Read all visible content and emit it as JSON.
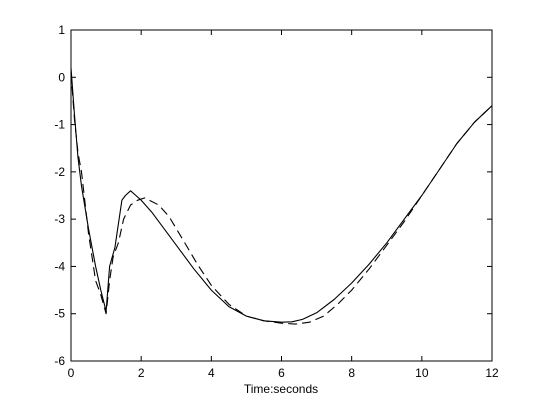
{
  "chart_data": {
    "type": "line",
    "xlabel": "Time:seconds",
    "ylabel": "",
    "title": "",
    "xlim": [
      0,
      12
    ],
    "ylim": [
      -6,
      1
    ],
    "grid": false,
    "legend": "none",
    "x_ticks": [
      0,
      2,
      4,
      6,
      8,
      10,
      12
    ],
    "y_ticks": [
      1,
      0,
      -1,
      -2,
      -3,
      -4,
      -5,
      -6
    ],
    "series": [
      {
        "style": "solid",
        "color": "#000000",
        "x": [
          0,
          0.1,
          0.2,
          0.3,
          0.5,
          0.7,
          0.85,
          1.0,
          1.1,
          1.25,
          1.45,
          1.55,
          1.7,
          1.85,
          2.0,
          2.3,
          2.6,
          3.0,
          3.5,
          4.0,
          4.5,
          5.0,
          5.5,
          6.0,
          6.3,
          6.6,
          7.0,
          7.5,
          8.0,
          8.5,
          9.0,
          9.5,
          10.0,
          10.5,
          11.0,
          11.5,
          12.0
        ],
        "y": [
          0.2,
          -0.8,
          -1.7,
          -2.3,
          -3.2,
          -4.0,
          -4.5,
          -4.95,
          -4.0,
          -3.6,
          -2.6,
          -2.5,
          -2.4,
          -2.5,
          -2.6,
          -2.85,
          -3.15,
          -3.55,
          -4.05,
          -4.5,
          -4.85,
          -5.05,
          -5.15,
          -5.18,
          -5.17,
          -5.12,
          -4.98,
          -4.7,
          -4.35,
          -3.95,
          -3.5,
          -3.0,
          -2.5,
          -1.95,
          -1.4,
          -0.95,
          -0.6
        ]
      },
      {
        "style": "dashed",
        "color": "#000000",
        "x": [
          0,
          0.1,
          0.2,
          0.3,
          0.5,
          0.7,
          0.85,
          1.0,
          1.1,
          1.2,
          1.35,
          1.5,
          1.7,
          1.9,
          2.1,
          2.5,
          2.8,
          3.2,
          3.6,
          4.0,
          4.5,
          5.0,
          5.5,
          6.0,
          6.4,
          6.8,
          7.2,
          7.6,
          8.0,
          8.5,
          9.0,
          9.5,
          10.0,
          10.5,
          11.0,
          11.5,
          12.0
        ],
        "y": [
          0.1,
          -0.9,
          -1.6,
          -2.0,
          -3.3,
          -4.3,
          -4.6,
          -5.0,
          -4.3,
          -3.8,
          -3.5,
          -3.0,
          -2.7,
          -2.6,
          -2.55,
          -2.7,
          -2.95,
          -3.45,
          -3.95,
          -4.4,
          -4.8,
          -5.05,
          -5.15,
          -5.2,
          -5.22,
          -5.18,
          -5.05,
          -4.8,
          -4.5,
          -4.05,
          -3.55,
          -3.05,
          -2.5,
          -1.95,
          -1.4,
          -0.95,
          -0.6
        ]
      }
    ]
  }
}
